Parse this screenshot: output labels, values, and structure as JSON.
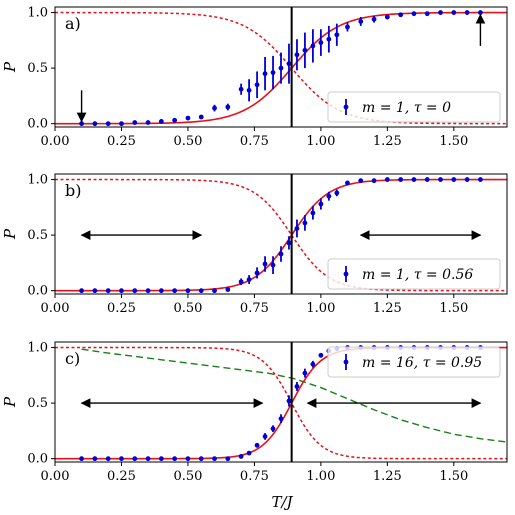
{
  "chart_data": [
    {
      "type": "scatter",
      "panel_label": "a)",
      "xlim": [
        0.0,
        1.7
      ],
      "ylim": [
        -0.03,
        1.05
      ],
      "x_ticks": [
        "0.00",
        "0.25",
        "0.50",
        "0.75",
        "1.00",
        "1.25",
        "1.50"
      ],
      "y_ticks": [
        "0.0",
        "0.5",
        "1.0"
      ],
      "ylabel": "P",
      "xlabel": "",
      "vline": 0.89,
      "sigmoid_center": 0.89,
      "sigmoid_width": 0.09,
      "legend": {
        "text": "m = 1,  τ = 0",
        "position": "lower-right"
      },
      "points": [
        {
          "x": 0.1,
          "y": 0.0,
          "err": 0.0
        },
        {
          "x": 0.15,
          "y": 0.0,
          "err": 0.0
        },
        {
          "x": 0.2,
          "y": 0.0,
          "err": 0.0
        },
        {
          "x": 0.25,
          "y": 0.0,
          "err": 0.0
        },
        {
          "x": 0.3,
          "y": 0.01,
          "err": 0.0
        },
        {
          "x": 0.35,
          "y": 0.01,
          "err": 0.0
        },
        {
          "x": 0.4,
          "y": 0.02,
          "err": 0.0
        },
        {
          "x": 0.45,
          "y": 0.03,
          "err": 0.0
        },
        {
          "x": 0.5,
          "y": 0.05,
          "err": 0.01
        },
        {
          "x": 0.55,
          "y": 0.06,
          "err": 0.01
        },
        {
          "x": 0.6,
          "y": 0.14,
          "err": 0.03
        },
        {
          "x": 0.65,
          "y": 0.15,
          "err": 0.03
        },
        {
          "x": 0.7,
          "y": 0.31,
          "err": 0.05
        },
        {
          "x": 0.73,
          "y": 0.3,
          "err": 0.1
        },
        {
          "x": 0.76,
          "y": 0.35,
          "err": 0.12
        },
        {
          "x": 0.79,
          "y": 0.45,
          "err": 0.15
        },
        {
          "x": 0.82,
          "y": 0.46,
          "err": 0.15
        },
        {
          "x": 0.85,
          "y": 0.5,
          "err": 0.14
        },
        {
          "x": 0.88,
          "y": 0.54,
          "err": 0.18
        },
        {
          "x": 0.91,
          "y": 0.62,
          "err": 0.14
        },
        {
          "x": 0.94,
          "y": 0.66,
          "err": 0.16
        },
        {
          "x": 0.97,
          "y": 0.7,
          "err": 0.15
        },
        {
          "x": 1.0,
          "y": 0.73,
          "err": 0.12
        },
        {
          "x": 1.03,
          "y": 0.76,
          "err": 0.12
        },
        {
          "x": 1.06,
          "y": 0.8,
          "err": 0.1
        },
        {
          "x": 1.1,
          "y": 0.87,
          "err": 0.04
        },
        {
          "x": 1.15,
          "y": 0.92,
          "err": 0.04
        },
        {
          "x": 1.2,
          "y": 0.94,
          "err": 0.03
        },
        {
          "x": 1.25,
          "y": 0.96,
          "err": 0.02
        },
        {
          "x": 1.3,
          "y": 0.98,
          "err": 0.01
        },
        {
          "x": 1.35,
          "y": 0.99,
          "err": 0.0
        },
        {
          "x": 1.4,
          "y": 0.99,
          "err": 0.0
        },
        {
          "x": 1.45,
          "y": 1.0,
          "err": 0.0
        },
        {
          "x": 1.5,
          "y": 1.0,
          "err": 0.0
        },
        {
          "x": 1.55,
          "y": 1.0,
          "err": 0.0
        },
        {
          "x": 1.6,
          "y": 1.0,
          "err": 0.0
        }
      ],
      "arrows": [
        {
          "kind": "vertical-down",
          "x": 0.1,
          "y_from": 0.3,
          "y_to": 0.02
        },
        {
          "kind": "vertical-up",
          "x": 1.6,
          "y_from": 0.7,
          "y_to": 0.98
        }
      ]
    },
    {
      "type": "scatter",
      "panel_label": "b)",
      "xlim": [
        0.0,
        1.7
      ],
      "ylim": [
        -0.03,
        1.05
      ],
      "x_ticks": [
        "0.00",
        "0.25",
        "0.50",
        "0.75",
        "1.00",
        "1.25",
        "1.50"
      ],
      "y_ticks": [
        "0.0",
        "0.5",
        "1.0"
      ],
      "ylabel": "P",
      "xlabel": "",
      "vline": 0.89,
      "sigmoid_center": 0.89,
      "sigmoid_width": 0.07,
      "legend": {
        "text": "m = 1,  τ = 0.56",
        "position": "lower-right"
      },
      "points": [
        {
          "x": 0.1,
          "y": 0.0,
          "err": 0.0
        },
        {
          "x": 0.15,
          "y": 0.0,
          "err": 0.0
        },
        {
          "x": 0.2,
          "y": 0.0,
          "err": 0.0
        },
        {
          "x": 0.25,
          "y": 0.0,
          "err": 0.0
        },
        {
          "x": 0.3,
          "y": 0.0,
          "err": 0.0
        },
        {
          "x": 0.35,
          "y": 0.0,
          "err": 0.0
        },
        {
          "x": 0.4,
          "y": 0.0,
          "err": 0.0
        },
        {
          "x": 0.45,
          "y": 0.0,
          "err": 0.0
        },
        {
          "x": 0.5,
          "y": 0.0,
          "err": 0.0
        },
        {
          "x": 0.55,
          "y": 0.0,
          "err": 0.0
        },
        {
          "x": 0.6,
          "y": 0.0,
          "err": 0.0
        },
        {
          "x": 0.65,
          "y": 0.01,
          "err": 0.0
        },
        {
          "x": 0.7,
          "y": 0.08,
          "err": 0.03
        },
        {
          "x": 0.73,
          "y": 0.1,
          "err": 0.04
        },
        {
          "x": 0.76,
          "y": 0.16,
          "err": 0.05
        },
        {
          "x": 0.79,
          "y": 0.24,
          "err": 0.07
        },
        {
          "x": 0.82,
          "y": 0.23,
          "err": 0.08
        },
        {
          "x": 0.85,
          "y": 0.33,
          "err": 0.07
        },
        {
          "x": 0.88,
          "y": 0.43,
          "err": 0.06
        },
        {
          "x": 0.91,
          "y": 0.56,
          "err": 0.08
        },
        {
          "x": 0.94,
          "y": 0.61,
          "err": 0.07
        },
        {
          "x": 0.97,
          "y": 0.7,
          "err": 0.06
        },
        {
          "x": 1.0,
          "y": 0.78,
          "err": 0.05
        },
        {
          "x": 1.03,
          "y": 0.85,
          "err": 0.04
        },
        {
          "x": 1.06,
          "y": 0.88,
          "err": 0.03
        },
        {
          "x": 1.1,
          "y": 0.97,
          "err": 0.01
        },
        {
          "x": 1.15,
          "y": 0.99,
          "err": 0.0
        },
        {
          "x": 1.2,
          "y": 0.99,
          "err": 0.0
        },
        {
          "x": 1.25,
          "y": 1.0,
          "err": 0.0
        },
        {
          "x": 1.3,
          "y": 1.0,
          "err": 0.0
        },
        {
          "x": 1.35,
          "y": 1.0,
          "err": 0.0
        },
        {
          "x": 1.4,
          "y": 1.0,
          "err": 0.0
        },
        {
          "x": 1.45,
          "y": 1.0,
          "err": 0.0
        },
        {
          "x": 1.5,
          "y": 1.0,
          "err": 0.0
        },
        {
          "x": 1.55,
          "y": 1.0,
          "err": 0.0
        },
        {
          "x": 1.6,
          "y": 1.0,
          "err": 0.0
        }
      ],
      "arrows": [
        {
          "kind": "double-horizontal",
          "y": 0.5,
          "x_from": 0.1,
          "x_to": 0.55
        },
        {
          "kind": "double-horizontal",
          "y": 0.5,
          "x_from": 1.15,
          "x_to": 1.6
        }
      ]
    },
    {
      "type": "scatter",
      "panel_label": "c)",
      "xlim": [
        0.0,
        1.7
      ],
      "ylim": [
        -0.03,
        1.05
      ],
      "x_ticks": [
        "0.00",
        "0.25",
        "0.50",
        "0.75",
        "1.00",
        "1.25",
        "1.50"
      ],
      "y_ticks": [
        "0.0",
        "0.5",
        "1.0"
      ],
      "ylabel": "P",
      "xlabel": "T/J",
      "vline": 0.89,
      "sigmoid_center": 0.89,
      "sigmoid_width": 0.055,
      "green_curve": [
        [
          0.1,
          0.985
        ],
        [
          0.2,
          0.95
        ],
        [
          0.3,
          0.92
        ],
        [
          0.4,
          0.89
        ],
        [
          0.5,
          0.86
        ],
        [
          0.6,
          0.83
        ],
        [
          0.7,
          0.8
        ],
        [
          0.8,
          0.77
        ],
        [
          0.9,
          0.72
        ],
        [
          1.0,
          0.64
        ],
        [
          1.1,
          0.54
        ],
        [
          1.2,
          0.44
        ],
        [
          1.3,
          0.35
        ],
        [
          1.4,
          0.28
        ],
        [
          1.5,
          0.22
        ],
        [
          1.6,
          0.18
        ],
        [
          1.7,
          0.15
        ]
      ],
      "legend": {
        "text": "m = 16,  τ = 0.95",
        "position": "upper-right"
      },
      "points": [
        {
          "x": 0.1,
          "y": 0.0,
          "err": 0.0
        },
        {
          "x": 0.15,
          "y": 0.0,
          "err": 0.0
        },
        {
          "x": 0.2,
          "y": 0.0,
          "err": 0.0
        },
        {
          "x": 0.25,
          "y": 0.0,
          "err": 0.0
        },
        {
          "x": 0.3,
          "y": 0.0,
          "err": 0.0
        },
        {
          "x": 0.35,
          "y": 0.0,
          "err": 0.0
        },
        {
          "x": 0.4,
          "y": 0.0,
          "err": 0.0
        },
        {
          "x": 0.45,
          "y": 0.0,
          "err": 0.0
        },
        {
          "x": 0.5,
          "y": 0.0,
          "err": 0.0
        },
        {
          "x": 0.55,
          "y": 0.0,
          "err": 0.0
        },
        {
          "x": 0.6,
          "y": 0.0,
          "err": 0.0
        },
        {
          "x": 0.65,
          "y": 0.0,
          "err": 0.0
        },
        {
          "x": 0.7,
          "y": 0.02,
          "err": 0.01
        },
        {
          "x": 0.73,
          "y": 0.05,
          "err": 0.01
        },
        {
          "x": 0.76,
          "y": 0.12,
          "err": 0.02
        },
        {
          "x": 0.79,
          "y": 0.2,
          "err": 0.03
        },
        {
          "x": 0.82,
          "y": 0.27,
          "err": 0.03
        },
        {
          "x": 0.85,
          "y": 0.36,
          "err": 0.04
        },
        {
          "x": 0.88,
          "y": 0.52,
          "err": 0.05
        },
        {
          "x": 0.91,
          "y": 0.65,
          "err": 0.04
        },
        {
          "x": 0.94,
          "y": 0.77,
          "err": 0.04
        },
        {
          "x": 0.97,
          "y": 0.85,
          "err": 0.03
        },
        {
          "x": 1.0,
          "y": 0.93,
          "err": 0.02
        },
        {
          "x": 1.03,
          "y": 0.97,
          "err": 0.01
        },
        {
          "x": 1.06,
          "y": 0.99,
          "err": 0.0
        },
        {
          "x": 1.1,
          "y": 1.0,
          "err": 0.0
        },
        {
          "x": 1.15,
          "y": 1.0,
          "err": 0.0
        },
        {
          "x": 1.2,
          "y": 1.0,
          "err": 0.0
        },
        {
          "x": 1.25,
          "y": 1.0,
          "err": 0.0
        },
        {
          "x": 1.3,
          "y": 1.0,
          "err": 0.0
        },
        {
          "x": 1.35,
          "y": 1.0,
          "err": 0.0
        },
        {
          "x": 1.4,
          "y": 1.0,
          "err": 0.0
        },
        {
          "x": 1.45,
          "y": 1.0,
          "err": 0.0
        },
        {
          "x": 1.5,
          "y": 1.0,
          "err": 0.0
        },
        {
          "x": 1.55,
          "y": 1.0,
          "err": 0.0
        },
        {
          "x": 1.6,
          "y": 1.0,
          "err": 0.0
        }
      ],
      "arrows": [
        {
          "kind": "double-horizontal",
          "y": 0.5,
          "x_from": 0.1,
          "x_to": 0.78
        },
        {
          "kind": "double-horizontal",
          "y": 0.5,
          "x_from": 0.95,
          "x_to": 1.6
        }
      ]
    }
  ],
  "colors": {
    "points": "#0000d4",
    "fit_curve": "#e8101a",
    "dashed_curve": "#e8101a",
    "green_curve": "#188018",
    "vline": "#000000",
    "arrows": "#000000"
  }
}
